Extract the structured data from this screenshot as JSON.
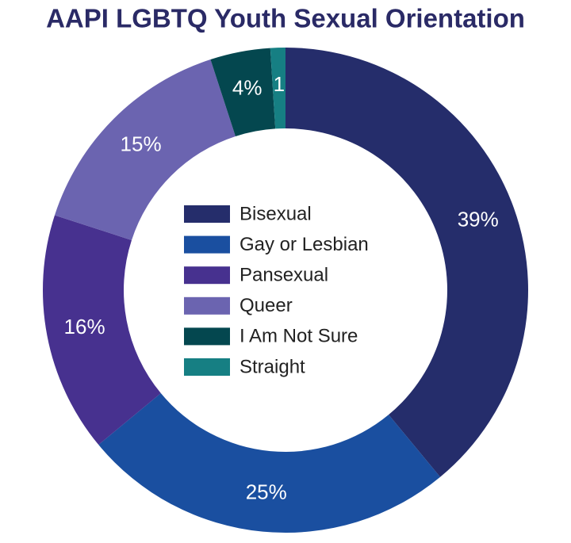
{
  "chart_data": {
    "type": "donut",
    "title": "AAPI LGBTQ Youth Sexual Orientation",
    "categories": [
      "Bisexual",
      "Gay or Lesbian",
      "Pansexual",
      "Queer",
      "I Am Not Sure",
      "Straight"
    ],
    "values": [
      39,
      25,
      16,
      15,
      4,
      1
    ],
    "value_labels": [
      "39%",
      "25%",
      "16%",
      "15%",
      "4%",
      "1"
    ],
    "colors": [
      "#252d6b",
      "#1a4fa0",
      "#47318f",
      "#6b64b0",
      "#04474f",
      "#167f83"
    ],
    "legend": "center"
  }
}
